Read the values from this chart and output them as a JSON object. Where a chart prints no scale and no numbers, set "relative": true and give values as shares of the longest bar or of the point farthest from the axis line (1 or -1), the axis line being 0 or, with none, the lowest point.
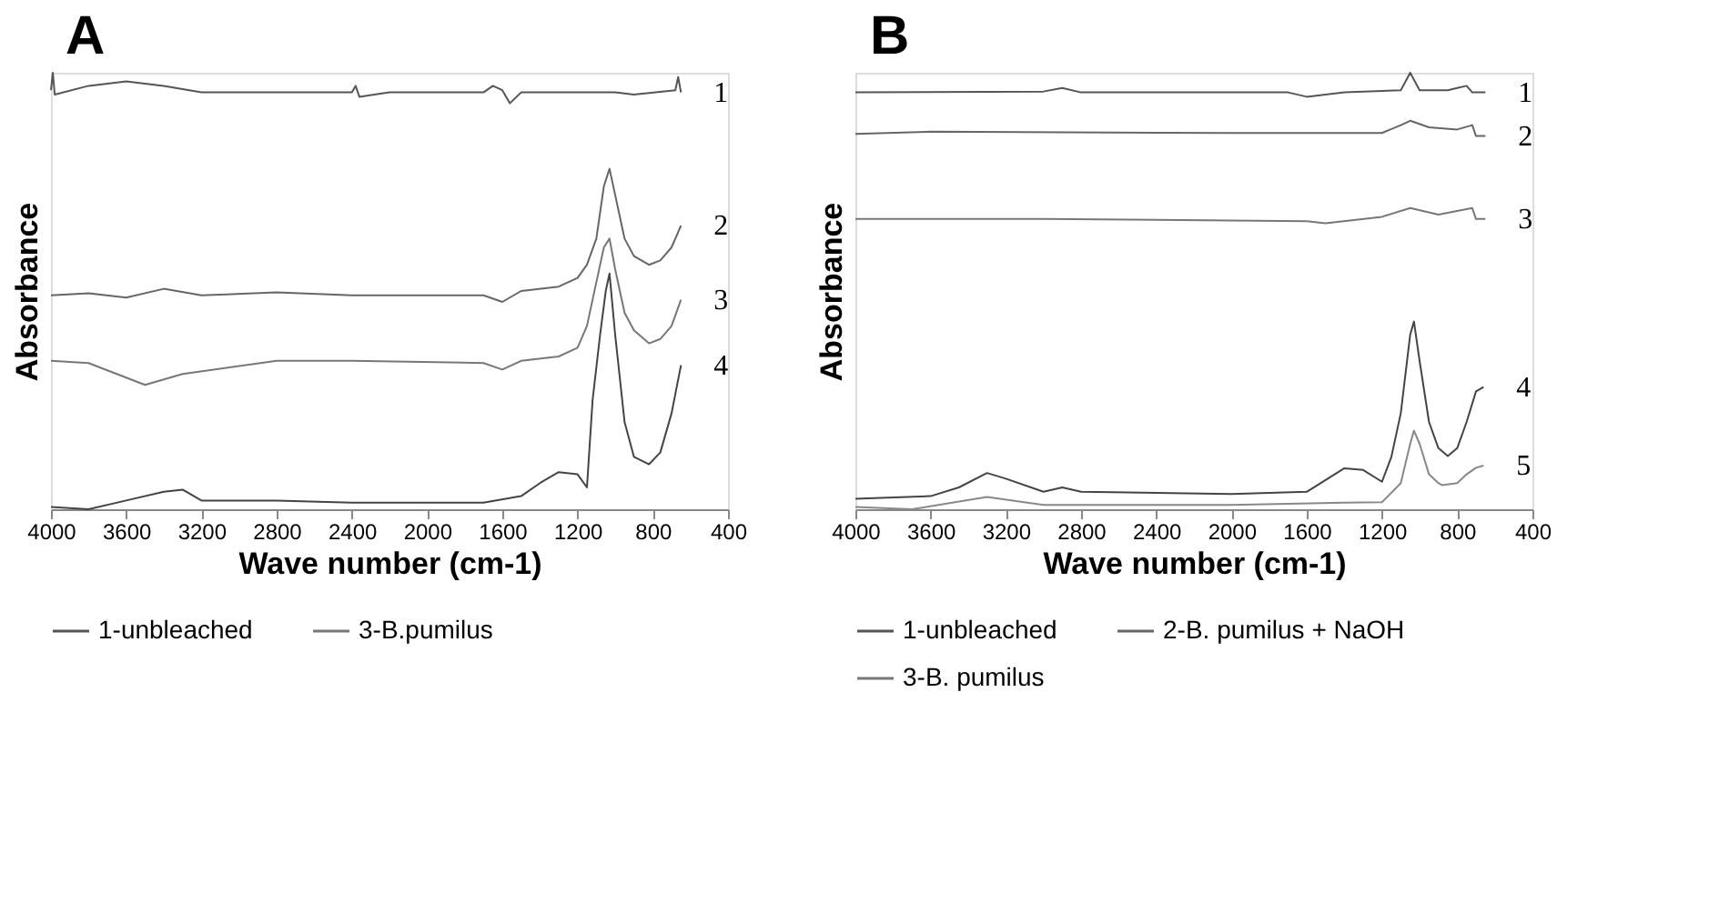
{
  "chart_data": [
    {
      "type": "line",
      "title": "A",
      "xlabel": "Wave number (cm-1)",
      "ylabel": "Absorbance",
      "relative": true,
      "xlim": [
        4000,
        400
      ],
      "xticks": [
        4000,
        3600,
        3200,
        2800,
        2400,
        2000,
        1600,
        1200,
        800,
        400
      ],
      "legend": "bottom",
      "series": [
        {
          "name": "1-unbleached",
          "color": "#555555",
          "x": [
            4000,
            3990,
            3980,
            3800,
            3600,
            3400,
            3200,
            2800,
            2400,
            2380,
            2360,
            2200,
            1700,
            1650,
            1600,
            1560,
            1500,
            1000,
            900,
            680,
            665,
            650
          ],
          "values": [
            0.96,
            1.0,
            0.95,
            0.97,
            0.98,
            0.97,
            0.955,
            0.955,
            0.955,
            0.97,
            0.945,
            0.955,
            0.955,
            0.97,
            0.96,
            0.93,
            0.955,
            0.955,
            0.95,
            0.96,
            0.99,
            0.955
          ]
        },
        {
          "name": null,
          "color": "#666666",
          "x": [
            4000,
            3800,
            3600,
            3400,
            3200,
            2800,
            2400,
            1700,
            1600,
            1500,
            1300,
            1200,
            1150,
            1100,
            1060,
            1030,
            1000,
            950,
            900,
            820,
            760,
            700,
            650
          ],
          "values": [
            0.49,
            0.495,
            0.485,
            0.505,
            0.49,
            0.497,
            0.49,
            0.49,
            0.475,
            0.5,
            0.51,
            0.53,
            0.56,
            0.62,
            0.74,
            0.78,
            0.72,
            0.62,
            0.58,
            0.56,
            0.57,
            0.6,
            0.65
          ]
        },
        {
          "name": "3-B.pumilus",
          "color": "#777777",
          "x": [
            4000,
            3800,
            3500,
            3300,
            2800,
            2400,
            1700,
            1600,
            1500,
            1300,
            1200,
            1150,
            1100,
            1060,
            1030,
            1000,
            950,
            900,
            820,
            760,
            700,
            650
          ],
          "values": [
            0.34,
            0.335,
            0.285,
            0.31,
            0.34,
            0.34,
            0.335,
            0.32,
            0.34,
            0.35,
            0.37,
            0.42,
            0.52,
            0.6,
            0.62,
            0.55,
            0.45,
            0.41,
            0.38,
            0.39,
            0.42,
            0.48
          ]
        },
        {
          "name": null,
          "color": "#444444",
          "x": [
            4000,
            3800,
            3600,
            3400,
            3300,
            3200,
            2800,
            2400,
            1700,
            1500,
            1400,
            1300,
            1200,
            1150,
            1120,
            1080,
            1050,
            1030,
            1000,
            950,
            900,
            820,
            760,
            700,
            650
          ],
          "values": [
            0.005,
            0.0,
            0.02,
            0.04,
            0.045,
            0.02,
            0.02,
            0.015,
            0.015,
            0.03,
            0.06,
            0.085,
            0.08,
            0.05,
            0.25,
            0.4,
            0.5,
            0.54,
            0.4,
            0.2,
            0.12,
            0.103,
            0.13,
            0.22,
            0.33
          ]
        }
      ],
      "annotations": [
        "1",
        "2",
        "3",
        "4"
      ]
    },
    {
      "type": "line",
      "title": "B",
      "xlabel": "Wave number (cm-1)",
      "ylabel": "Absorbance",
      "relative": true,
      "xlim": [
        4000,
        400
      ],
      "xticks": [
        4000,
        3600,
        3200,
        2800,
        2400,
        2000,
        1600,
        1200,
        800,
        400
      ],
      "legend": "bottom",
      "series": [
        {
          "name": "1-unbleached",
          "color": "#555555",
          "x": [
            4000,
            3000,
            2900,
            2800,
            1700,
            1600,
            1400,
            1100,
            1050,
            1000,
            850,
            800,
            750,
            720,
            650
          ],
          "values": [
            0.955,
            0.957,
            0.965,
            0.955,
            0.955,
            0.945,
            0.955,
            0.96,
            1.0,
            0.96,
            0.96,
            0.965,
            0.97,
            0.955,
            0.955
          ]
        },
        {
          "name": "2-B. pumilus + NaOH",
          "color": "#666666",
          "x": [
            4000,
            3600,
            2000,
            1200,
            1100,
            1050,
            950,
            800,
            720,
            700,
            650
          ],
          "values": [
            0.86,
            0.865,
            0.862,
            0.862,
            0.88,
            0.89,
            0.875,
            0.87,
            0.88,
            0.855,
            0.855
          ]
        },
        {
          "name": "3-B. pumilus",
          "color": "#777777",
          "x": [
            4000,
            3000,
            1600,
            1500,
            1200,
            1050,
            900,
            720,
            700,
            650
          ],
          "values": [
            0.665,
            0.665,
            0.66,
            0.655,
            0.67,
            0.69,
            0.675,
            0.69,
            0.665,
            0.665
          ]
        },
        {
          "name": null,
          "color": "#444444",
          "x": [
            4000,
            3600,
            3450,
            3300,
            3200,
            3000,
            2900,
            2800,
            2000,
            1600,
            1400,
            1300,
            1200,
            1150,
            1100,
            1050,
            1030,
            1000,
            950,
            900,
            850,
            800,
            750,
            700,
            660
          ],
          "values": [
            0.024,
            0.03,
            0.05,
            0.083,
            0.07,
            0.04,
            0.05,
            0.04,
            0.035,
            0.04,
            0.094,
            0.09,
            0.063,
            0.12,
            0.22,
            0.4,
            0.43,
            0.34,
            0.2,
            0.14,
            0.122,
            0.14,
            0.2,
            0.27,
            0.28
          ]
        },
        {
          "name": null,
          "color": "#888888",
          "x": [
            4000,
            3700,
            3300,
            3000,
            2000,
            1400,
            1200,
            1100,
            1050,
            1030,
            1000,
            950,
            900,
            880,
            800,
            750,
            700,
            660
          ],
          "values": [
            0.005,
            0.0,
            0.028,
            0.01,
            0.01,
            0.015,
            0.016,
            0.06,
            0.15,
            0.18,
            0.15,
            0.08,
            0.06,
            0.055,
            0.06,
            0.08,
            0.095,
            0.1
          ]
        }
      ],
      "annotations": [
        "1",
        "2",
        "3",
        "4",
        "5"
      ]
    }
  ]
}
